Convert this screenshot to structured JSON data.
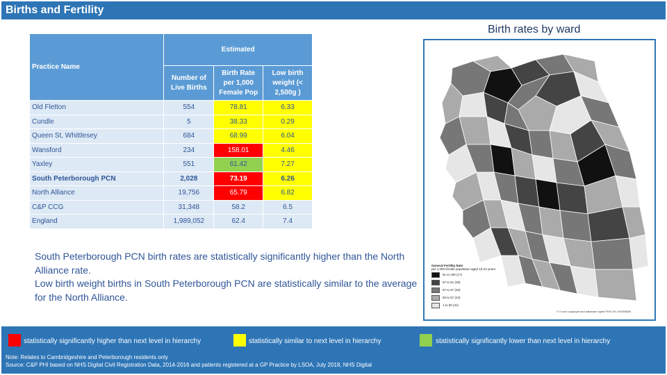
{
  "header": {
    "title": "Births and Fertility"
  },
  "map": {
    "title": "Birth rates by ward",
    "legend": {
      "title": "General Fertility Rate",
      "subtitle": "per 1,000 female population aged 15-44 years",
      "items": [
        {
          "label": "81 to 190  (17)",
          "color": "#111111"
        },
        {
          "label": "67 to 81  (28)",
          "color": "#444444"
        },
        {
          "label": "57 to 67  (32)",
          "color": "#777777"
        },
        {
          "label": "50 to 57  (24)",
          "color": "#aaaaaa"
        },
        {
          "label": "1 to 50  (31)",
          "color": "#e6e6e6"
        }
      ]
    },
    "copyright": "© Crown copyright and database rights PHIS 0S 100059686"
  },
  "table": {
    "practice_header": "Practice Name",
    "estimated_header": "Estimated",
    "col_births": "Number of Live Births",
    "col_rate": "Birth Rate per 1,000 Female Pop",
    "col_lbw": "Low birth weight (< 2,500g )",
    "rows": [
      {
        "name": "Old Fletton",
        "births": "554",
        "rate": "78.81",
        "lbw": "6.33"
      },
      {
        "name": "Cundle",
        "births": "5",
        "rate": "38.33",
        "lbw": "0.29"
      },
      {
        "name": "Queen St, Whittlesey",
        "births": "684",
        "rate": "68.99",
        "lbw": "6.04"
      },
      {
        "name": "Wansford",
        "births": "234",
        "rate": "158.01",
        "lbw": "4.46"
      },
      {
        "name": "Yaxley",
        "births": "551",
        "rate": "61.42",
        "lbw": "7.27"
      },
      {
        "name": "South Peterborough PCN",
        "births": "2,028",
        "rate": "73.19",
        "lbw": "6.26"
      },
      {
        "name": "North Alliance",
        "births": "19,756",
        "rate": "65.79",
        "lbw": "6.82"
      },
      {
        "name": "C&P CCG",
        "births": "31,348",
        "rate": "58.2",
        "lbw": "6.5"
      },
      {
        "name": "England",
        "births": "1,989,052",
        "rate": "62.4",
        "lbw": "7.4"
      }
    ]
  },
  "summary": {
    "line1": "South Peterborough PCN birth rates are statistically significantly higher than the North Alliance rate.",
    "line2": "Low birth weight births in South Peterborough PCN are statistically similar to the average for the North Alliance."
  },
  "key": {
    "red_label": "statistically significantly higher than next level in hierarchy",
    "yellow_label": "statistically similar to next level in hierarchy",
    "green_label": "statistically significantly lower than next level in hierarchy",
    "red_color": "#ff0000",
    "yellow_color": "#ffff00",
    "green_color": "#92d050"
  },
  "notes": {
    "note": "Note:  Relates to Cambridgeshire and Peterborough residents only",
    "source": "Source: C&P PHI based on NHS Digital Civil Registration Data, 2014-2016 and patients registered at a GP Practice by LSOA, July 2018, NHS Digital"
  }
}
